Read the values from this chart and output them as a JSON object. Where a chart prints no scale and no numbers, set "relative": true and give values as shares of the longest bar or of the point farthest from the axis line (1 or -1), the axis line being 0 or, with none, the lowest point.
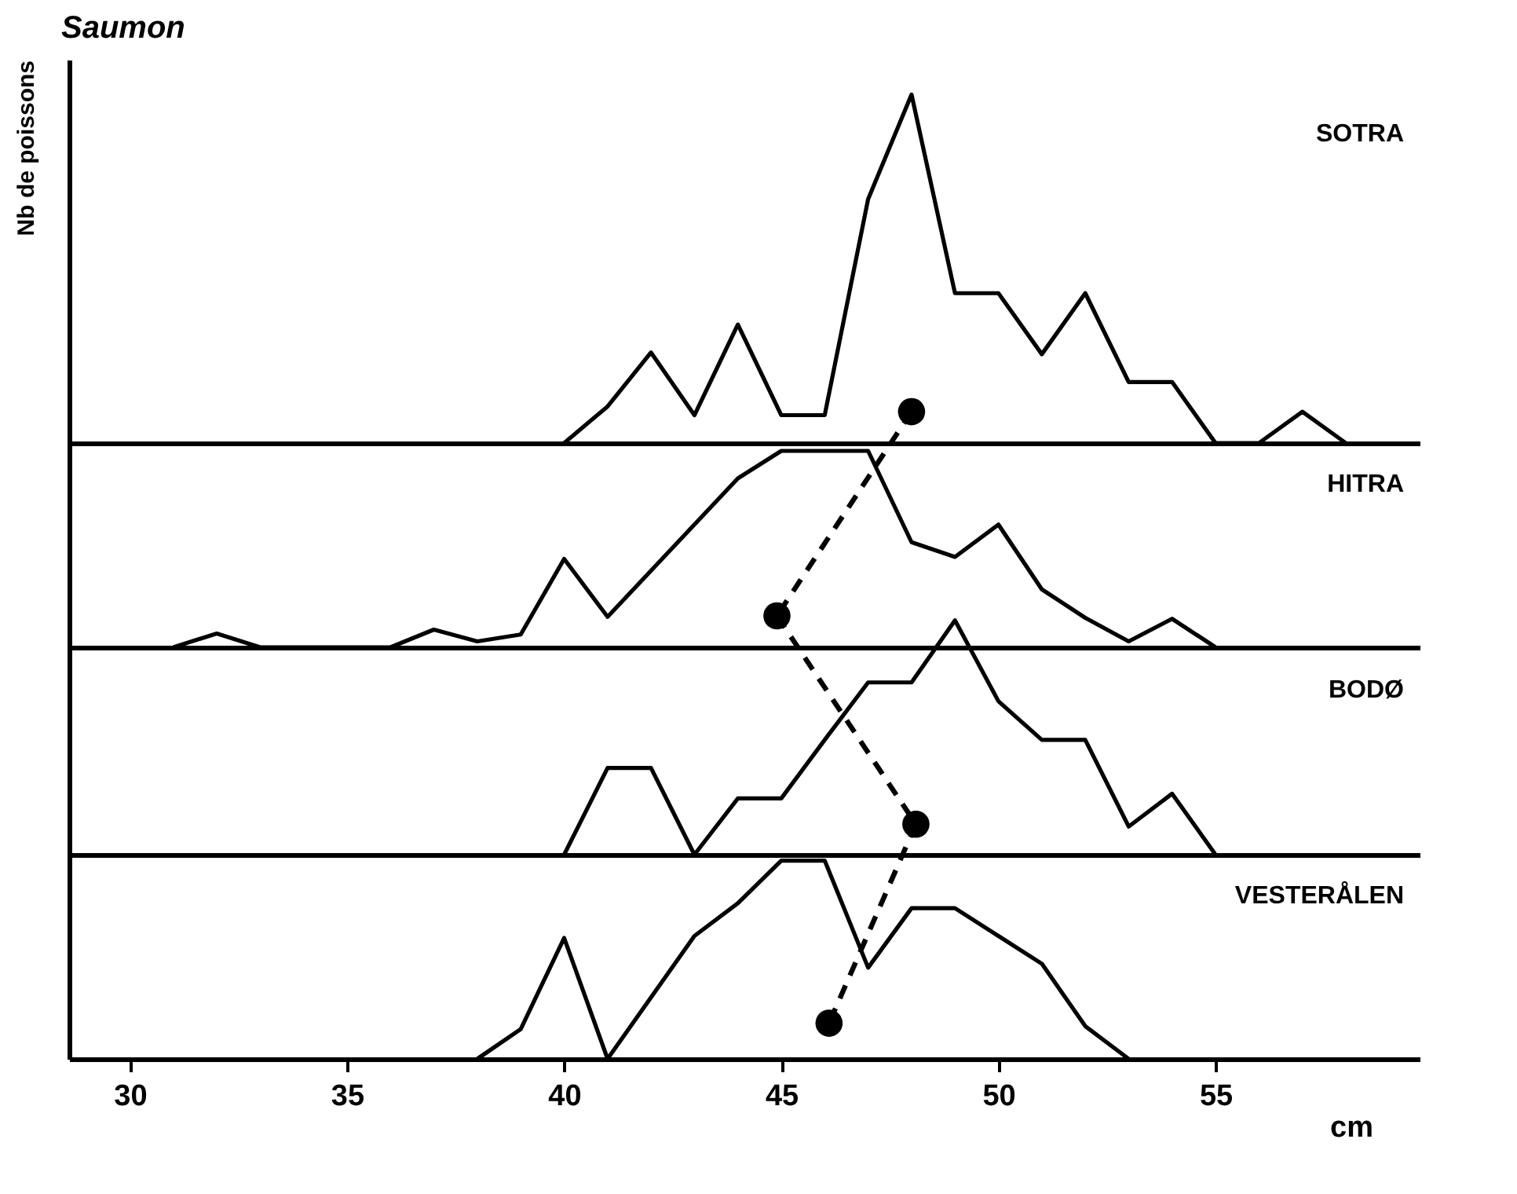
{
  "chart_data": [
    {
      "type": "line",
      "title": "Saumon",
      "ylabel": "Nb de poissons",
      "relative": true,
      "xlim": [
        28.6,
        59.7
      ],
      "xticks": [
        30,
        35,
        40,
        45,
        50,
        55
      ],
      "tick_labels": false,
      "series": [
        {
          "name": "SOTRA",
          "color": "#000000",
          "x": [
            40,
            41,
            42,
            43,
            44,
            45,
            46,
            47,
            48,
            49,
            50,
            51,
            52,
            53,
            54,
            55,
            56,
            57,
            58
          ],
          "values": [
            0,
            0.105,
            0.26,
            0.08,
            0.34,
            0.08,
            0.08,
            0.7,
            1,
            0.43,
            0.43,
            0.255,
            0.43,
            0.175,
            0.175,
            0,
            0,
            0.09,
            0
          ]
        },
        {
          "type": "scatter",
          "color": "#000000",
          "x": [
            48.0
          ],
          "values": [
            0.09
          ]
        }
      ]
    },
    {
      "type": "line",
      "relative": true,
      "xlim": [
        28.6,
        59.7
      ],
      "xticks": [
        30,
        35,
        40,
        45,
        50,
        55
      ],
      "tick_labels": false,
      "series": [
        {
          "name": "HITRA",
          "color": "#000000",
          "x": [
            31,
            32,
            33,
            34,
            35,
            36,
            37,
            38,
            39,
            40,
            41,
            42,
            43,
            44,
            45,
            46,
            47,
            48,
            49,
            50,
            51,
            52,
            53,
            54,
            55
          ],
          "values": [
            0,
            0.07,
            0,
            0,
            0,
            0,
            0.09,
            0.03,
            0.065,
            0.45,
            0.155,
            0.39,
            0.625,
            0.86,
            1,
            1,
            1,
            0.535,
            0.46,
            0.625,
            0.295,
            0.15,
            0.03,
            0.145,
            0
          ]
        },
        {
          "type": "scatter",
          "color": "#000000",
          "x": [
            44.9
          ],
          "values": [
            0.16
          ]
        }
      ]
    },
    {
      "type": "line",
      "relative": true,
      "xlim": [
        28.6,
        59.7
      ],
      "xticks": [
        30,
        35,
        40,
        45,
        50,
        55
      ],
      "tick_labels": false,
      "series": [
        {
          "name": "BODØ",
          "color": "#000000",
          "x": [
            40,
            41,
            42,
            43,
            44,
            45,
            46,
            47,
            48,
            49,
            50,
            51,
            52,
            53,
            54,
            55
          ],
          "values": [
            0,
            0.37,
            0.37,
            0,
            0.24,
            0.24,
            0.49,
            0.735,
            0.735,
            1,
            0.655,
            0.49,
            0.49,
            0.12,
            0.26,
            0
          ]
        },
        {
          "type": "scatter",
          "color": "#000000",
          "x": [
            48.1
          ],
          "values": [
            0.13
          ]
        }
      ]
    },
    {
      "type": "line",
      "xlabel": "cm",
      "relative": true,
      "xlim": [
        28.6,
        59.7
      ],
      "xticks": [
        30,
        35,
        40,
        45,
        50,
        55
      ],
      "tick_labels": "x",
      "series": [
        {
          "name": "VESTERÅLEN",
          "color": "#000000",
          "x": [
            38,
            39,
            40,
            41,
            42,
            43,
            44,
            45,
            46,
            47,
            48,
            49,
            50,
            51,
            52,
            53
          ],
          "values": [
            0,
            0.15,
            0.61,
            0,
            0.31,
            0.62,
            0.785,
            1,
            1,
            0.46,
            0.76,
            0.76,
            0.62,
            0.48,
            0.165,
            0
          ]
        },
        {
          "type": "scatter",
          "color": "#000000",
          "x": [
            46.1
          ],
          "values": [
            0.18
          ]
        }
      ]
    }
  ]
}
